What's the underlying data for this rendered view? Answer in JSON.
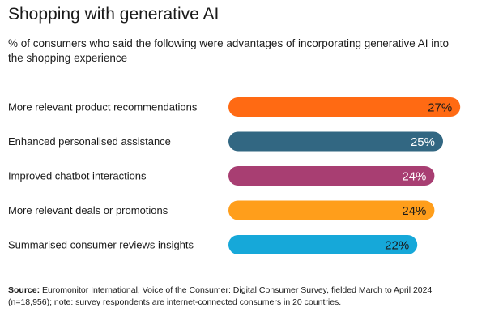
{
  "title": "Shopping with generative AI",
  "subtitle": "% of consumers who said the following were advantages of incorporating generative AI into the shopping experience",
  "source": {
    "label": "Source:",
    "text": "Euromonitor International, Voice of the Consumer: Digital Consumer Survey, fielded March to April 2024 (n=18,956); note: survey respondents are internet-connected consumers in 20 countries."
  },
  "chart_data": {
    "type": "bar",
    "orientation": "horizontal",
    "title": "Shopping with generative AI",
    "subtitle": "% of consumers who said the following were advantages of incorporating generative AI into the shopping experience",
    "categories": [
      "More relevant product recommendations",
      "Enhanced personalised assistance",
      "Improved chatbot interactions",
      "More relevant deals or promotions",
      "Summarised consumer reviews insights"
    ],
    "values": [
      27,
      25,
      24,
      24,
      22
    ],
    "value_labels": [
      "27%",
      "25%",
      "24%",
      "24%",
      "22%"
    ],
    "unit": "%",
    "colors": [
      "#ff6a13",
      "#326782",
      "#a83e72",
      "#ff9e1b",
      "#16a8d9"
    ],
    "value_label_colors": [
      "#1a1a1a",
      "#ffffff",
      "#ffffff",
      "#1a1a1a",
      "#1a1a1a"
    ],
    "grid": false,
    "legend": "none"
  }
}
